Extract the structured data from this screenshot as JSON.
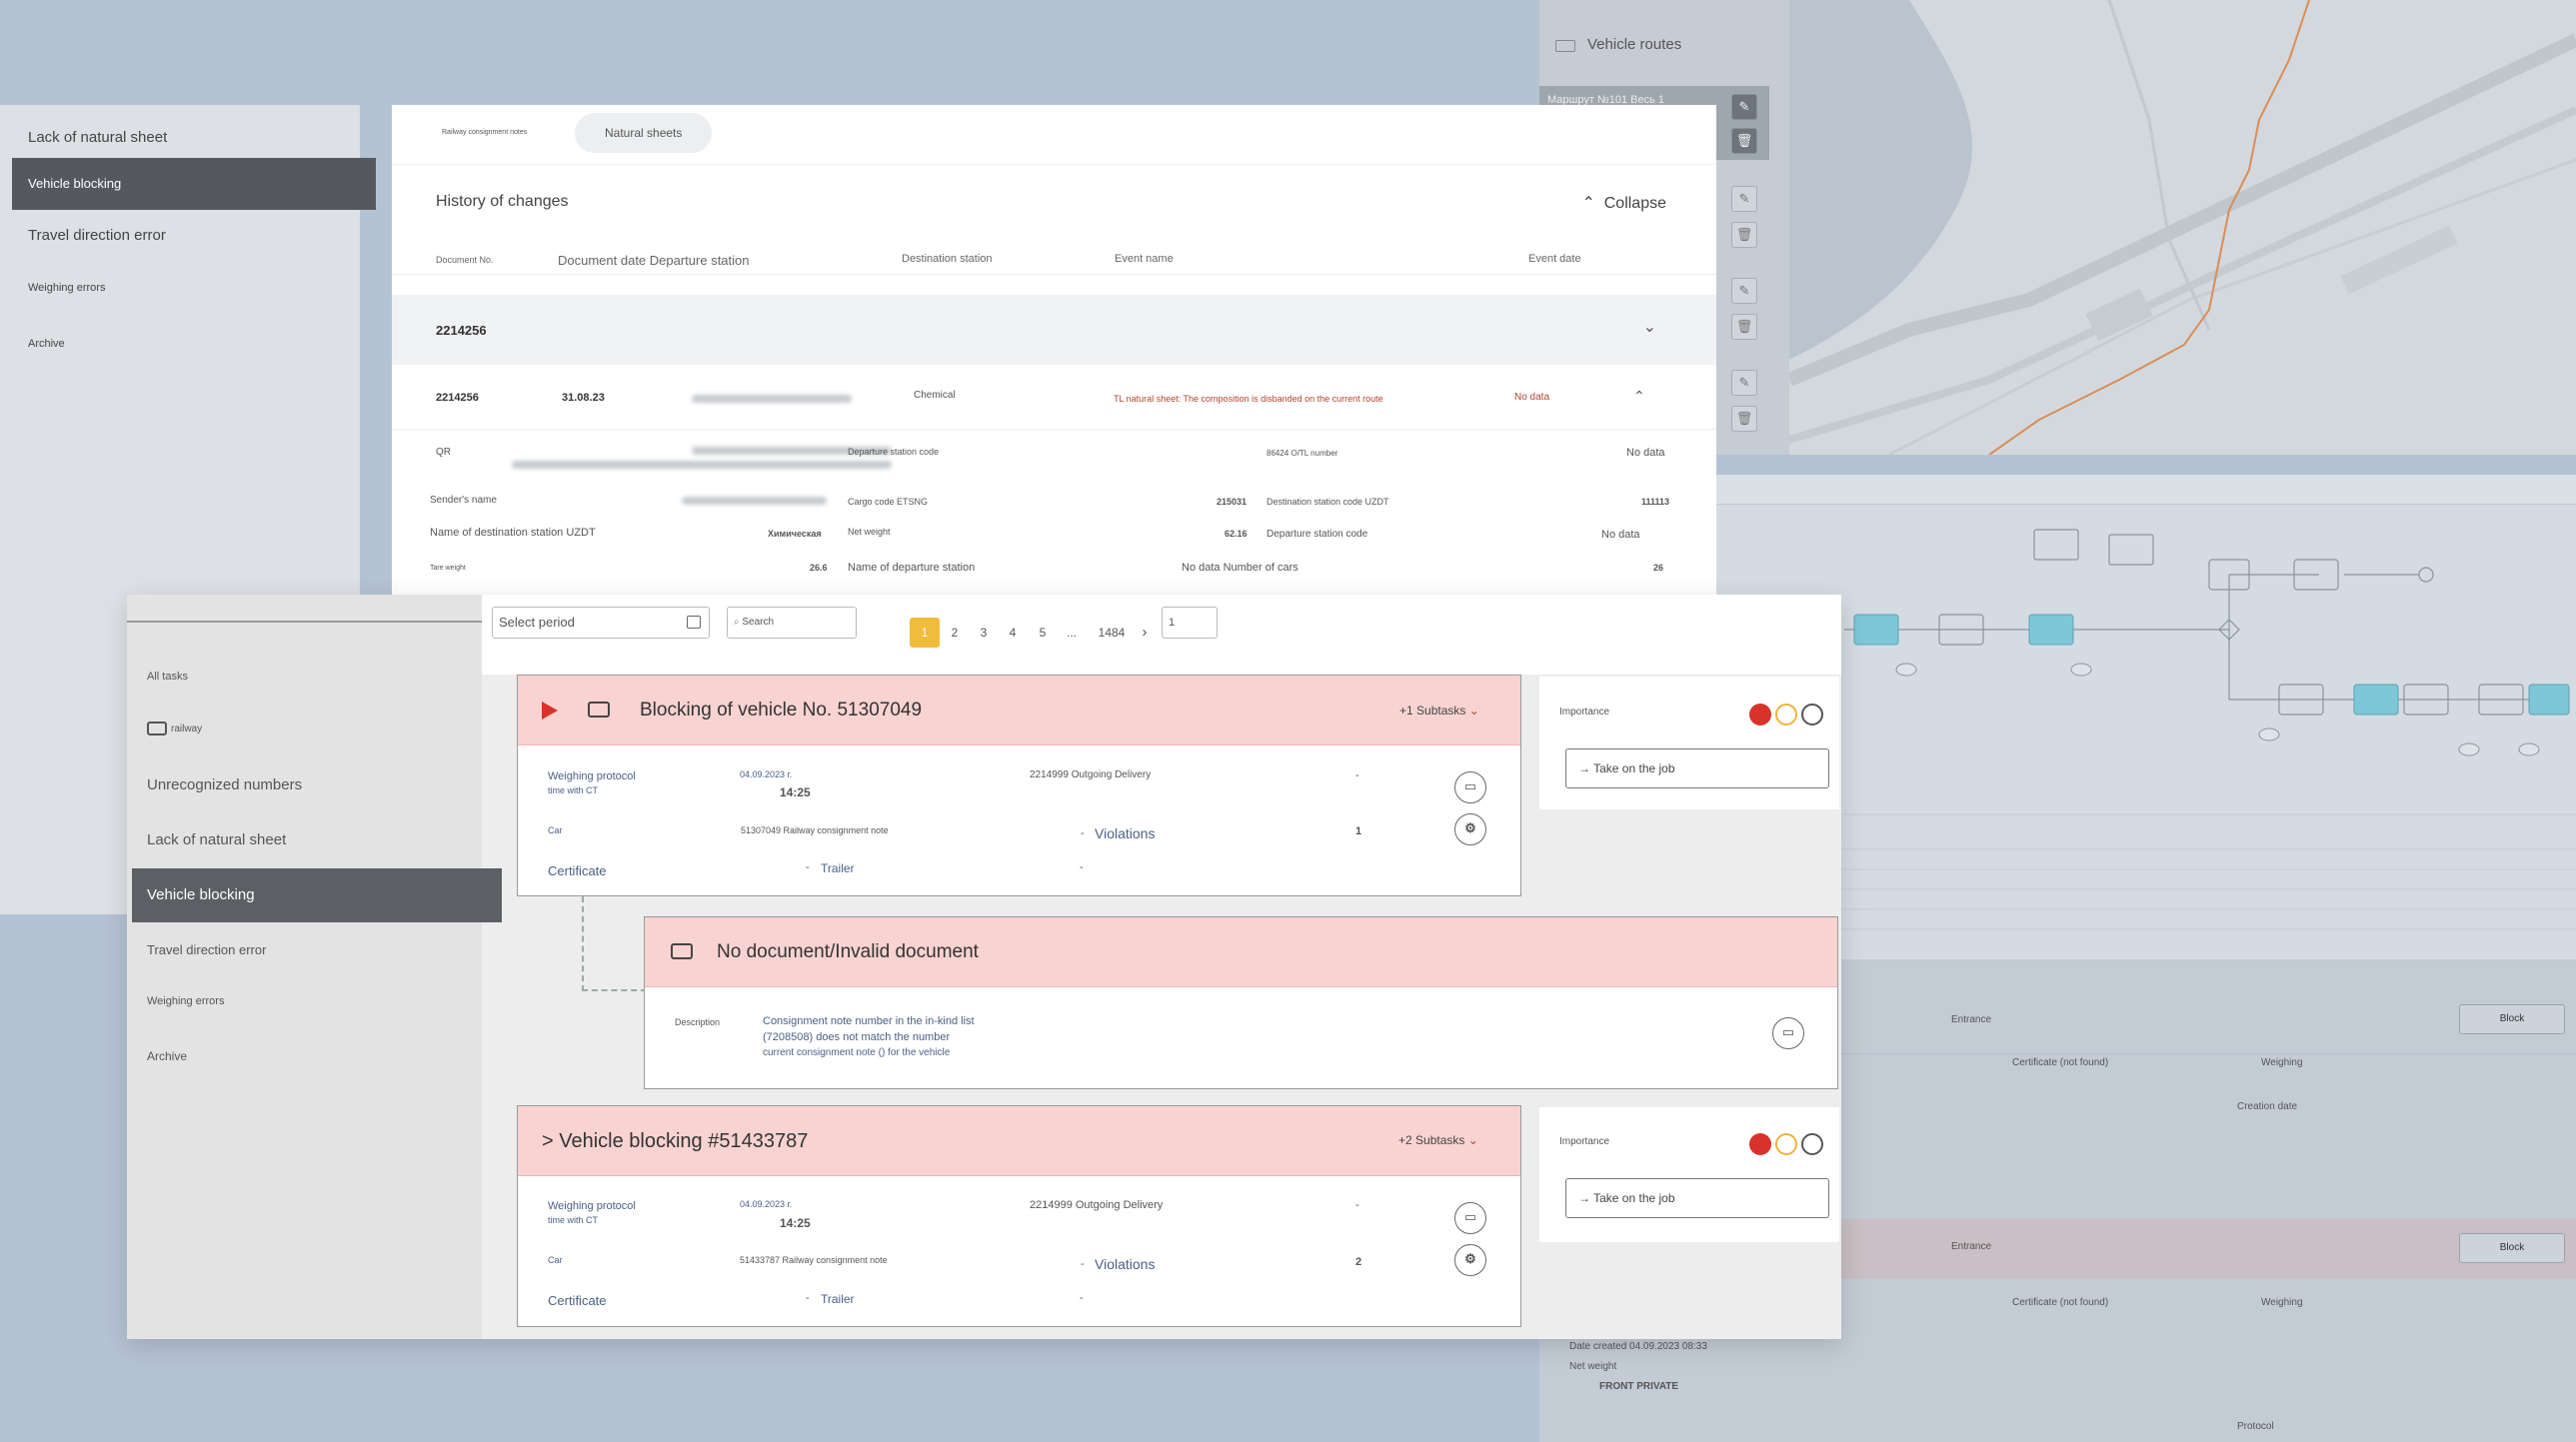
{
  "routes": {
    "title": "Vehicle routes",
    "row1": "Маршрут №101 Весь 1"
  },
  "back_sidebar": [
    "Lack of natural sheet",
    "Vehicle blocking",
    "Travel direction error",
    "Weighing errors",
    "Archive"
  ],
  "back_main": {
    "tab1": "Railway consignment notes",
    "tab2": "Natural sheets",
    "section_title": "History of changes",
    "collapse": "Collapse",
    "col_doc": "Document No.",
    "col_date_dep": "Document date Departure station",
    "col_dest": "Destination station",
    "col_event": "Event name",
    "col_event_date": "Event date",
    "group_no": "2214256",
    "row_no": "2214256",
    "row_date": "31.08.23",
    "row_cargo": "Chemical",
    "row_event": "TL natural sheet: The composition is disbanded on the current route",
    "row_event_date": "No data",
    "d_qr": "QR",
    "d_dep_code": "Departure station code",
    "d_trs": "86424 О/TL number",
    "d_nodata1": "No data",
    "d_sender": "Sender's name",
    "d_cargo": "Cargo code ETSNG",
    "d_cargo_val": "215031",
    "d_dest_code": "Destination station code UZDT",
    "d_dest_code_val": "111113",
    "d_dest_name": "Name of destination station UZDT",
    "d_dest_name_val": "Химическая",
    "d_net": "Net weight",
    "d_net_val": "62.16",
    "d_dep_code2": "Departure station code",
    "d_nodata2": "No data",
    "d_tare": "Tare weight",
    "d_tare_val": "26.6",
    "d_dep_name": "Name of departure station",
    "d_cars": "No data Number of cars",
    "d_cars_val": "26"
  },
  "front_sidebar": {
    "all_tasks": "All tasks",
    "railway": "railway",
    "unrec": "Unrecognized numbers",
    "lack": "Lack of natural sheet",
    "blocking": "Vehicle blocking",
    "travel": "Travel direction error",
    "weighing": "Weighing errors",
    "archive": "Archive"
  },
  "toolbar": {
    "period_placeholder": "Select period",
    "search_placeholder": "Search",
    "pages": [
      "1",
      "2",
      "3",
      "4",
      "5",
      "...",
      "1484"
    ],
    "page_input": "1"
  },
  "card1": {
    "title": "Blocking of vehicle No. 51307049",
    "subtasks": "+1 Subtasks",
    "weighing_protocol": "Weighing protocol",
    "time_with_ct": "time with CT",
    "date": "04.09.2023 г.",
    "time": "14:25",
    "delivery": "2214999 Outgoing Delivery",
    "dash1": "-",
    "car": "Car",
    "car_val": "51307049 Railway consignment note",
    "dash2": "-",
    "violations": "Violations",
    "violations_val": "1",
    "certificate": "Certificate",
    "dash3": "-",
    "trailer": "Trailer",
    "dash4": "-"
  },
  "sub1": {
    "title": "No document/Invalid document",
    "desc_label": "Description",
    "desc1": "Consignment note number in the in-kind list",
    "desc2": "(7208508) does not match the number",
    "desc3": "current consignment note () for the vehicle"
  },
  "card2": {
    "title": "> Vehicle blocking #51433787",
    "subtasks": "+2 Subtasks",
    "weighing_protocol": "Weighing protocol",
    "time_with_ct": "time with CT",
    "date": "04.09.2023 г.",
    "time": "14:25",
    "delivery": "2214999 Outgoing Delivery",
    "dash1": "-",
    "car": "Car",
    "car_val": "51433787 Railway consignment note",
    "dash2": "-",
    "violations": "Violations",
    "violations_val": "2",
    "certificate": "Certificate",
    "dash3": "-",
    "trailer": "Trailer",
    "dash4": "-"
  },
  "importance": {
    "label": "Importance",
    "take": "→ Take on the job"
  },
  "right_detail": {
    "entrance": "Entrance",
    "block": "Block",
    "certificate": "Certificate (not found)",
    "weighing": "Weighing",
    "date_created": "Date created 04.09.2023 08:33",
    "net_weight": "Net weight",
    "front_private": "FRONT PRIVATE",
    "creation_date": "Creation date",
    "protocol": "Protocol"
  },
  "colors": {
    "accent_red": "#d8322a",
    "accent_orange": "#f1b33c",
    "pink_header": "#f8d3d1",
    "active_side": "#5c5f63"
  }
}
